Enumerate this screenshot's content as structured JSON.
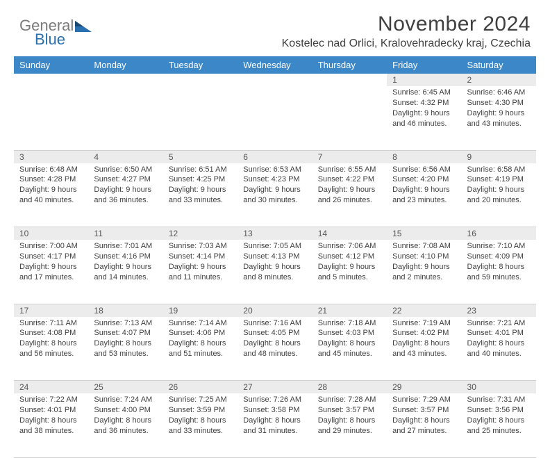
{
  "brand": {
    "word1": "General",
    "word2": "Blue"
  },
  "header": {
    "month_title": "November 2024",
    "location": "Kostelec nad Orlici, Kralovehradecky kraj, Czechia"
  },
  "colors": {
    "header_bg": "#3b87c8",
    "header_text": "#ffffff",
    "daynum_bg": "#ececec",
    "text": "#404040",
    "logo_gray": "#7a7a7a",
    "logo_blue": "#2a6fb0"
  },
  "day_headers": [
    "Sunday",
    "Monday",
    "Tuesday",
    "Wednesday",
    "Thursday",
    "Friday",
    "Saturday"
  ],
  "weeks": [
    [
      null,
      null,
      null,
      null,
      null,
      {
        "n": "1",
        "sunrise": "6:45 AM",
        "sunset": "4:32 PM",
        "dl_h": "9",
        "dl_m": "46"
      },
      {
        "n": "2",
        "sunrise": "6:46 AM",
        "sunset": "4:30 PM",
        "dl_h": "9",
        "dl_m": "43"
      }
    ],
    [
      {
        "n": "3",
        "sunrise": "6:48 AM",
        "sunset": "4:28 PM",
        "dl_h": "9",
        "dl_m": "40"
      },
      {
        "n": "4",
        "sunrise": "6:50 AM",
        "sunset": "4:27 PM",
        "dl_h": "9",
        "dl_m": "36"
      },
      {
        "n": "5",
        "sunrise": "6:51 AM",
        "sunset": "4:25 PM",
        "dl_h": "9",
        "dl_m": "33"
      },
      {
        "n": "6",
        "sunrise": "6:53 AM",
        "sunset": "4:23 PM",
        "dl_h": "9",
        "dl_m": "30"
      },
      {
        "n": "7",
        "sunrise": "6:55 AM",
        "sunset": "4:22 PM",
        "dl_h": "9",
        "dl_m": "26"
      },
      {
        "n": "8",
        "sunrise": "6:56 AM",
        "sunset": "4:20 PM",
        "dl_h": "9",
        "dl_m": "23"
      },
      {
        "n": "9",
        "sunrise": "6:58 AM",
        "sunset": "4:19 PM",
        "dl_h": "9",
        "dl_m": "20"
      }
    ],
    [
      {
        "n": "10",
        "sunrise": "7:00 AM",
        "sunset": "4:17 PM",
        "dl_h": "9",
        "dl_m": "17"
      },
      {
        "n": "11",
        "sunrise": "7:01 AM",
        "sunset": "4:16 PM",
        "dl_h": "9",
        "dl_m": "14"
      },
      {
        "n": "12",
        "sunrise": "7:03 AM",
        "sunset": "4:14 PM",
        "dl_h": "9",
        "dl_m": "11"
      },
      {
        "n": "13",
        "sunrise": "7:05 AM",
        "sunset": "4:13 PM",
        "dl_h": "9",
        "dl_m": "8"
      },
      {
        "n": "14",
        "sunrise": "7:06 AM",
        "sunset": "4:12 PM",
        "dl_h": "9",
        "dl_m": "5"
      },
      {
        "n": "15",
        "sunrise": "7:08 AM",
        "sunset": "4:10 PM",
        "dl_h": "9",
        "dl_m": "2"
      },
      {
        "n": "16",
        "sunrise": "7:10 AM",
        "sunset": "4:09 PM",
        "dl_h": "8",
        "dl_m": "59"
      }
    ],
    [
      {
        "n": "17",
        "sunrise": "7:11 AM",
        "sunset": "4:08 PM",
        "dl_h": "8",
        "dl_m": "56"
      },
      {
        "n": "18",
        "sunrise": "7:13 AM",
        "sunset": "4:07 PM",
        "dl_h": "8",
        "dl_m": "53"
      },
      {
        "n": "19",
        "sunrise": "7:14 AM",
        "sunset": "4:06 PM",
        "dl_h": "8",
        "dl_m": "51"
      },
      {
        "n": "20",
        "sunrise": "7:16 AM",
        "sunset": "4:05 PM",
        "dl_h": "8",
        "dl_m": "48"
      },
      {
        "n": "21",
        "sunrise": "7:18 AM",
        "sunset": "4:03 PM",
        "dl_h": "8",
        "dl_m": "45"
      },
      {
        "n": "22",
        "sunrise": "7:19 AM",
        "sunset": "4:02 PM",
        "dl_h": "8",
        "dl_m": "43"
      },
      {
        "n": "23",
        "sunrise": "7:21 AM",
        "sunset": "4:01 PM",
        "dl_h": "8",
        "dl_m": "40"
      }
    ],
    [
      {
        "n": "24",
        "sunrise": "7:22 AM",
        "sunset": "4:01 PM",
        "dl_h": "8",
        "dl_m": "38"
      },
      {
        "n": "25",
        "sunrise": "7:24 AM",
        "sunset": "4:00 PM",
        "dl_h": "8",
        "dl_m": "36"
      },
      {
        "n": "26",
        "sunrise": "7:25 AM",
        "sunset": "3:59 PM",
        "dl_h": "8",
        "dl_m": "33"
      },
      {
        "n": "27",
        "sunrise": "7:26 AM",
        "sunset": "3:58 PM",
        "dl_h": "8",
        "dl_m": "31"
      },
      {
        "n": "28",
        "sunrise": "7:28 AM",
        "sunset": "3:57 PM",
        "dl_h": "8",
        "dl_m": "29"
      },
      {
        "n": "29",
        "sunrise": "7:29 AM",
        "sunset": "3:57 PM",
        "dl_h": "8",
        "dl_m": "27"
      },
      {
        "n": "30",
        "sunrise": "7:31 AM",
        "sunset": "3:56 PM",
        "dl_h": "8",
        "dl_m": "25"
      }
    ]
  ]
}
